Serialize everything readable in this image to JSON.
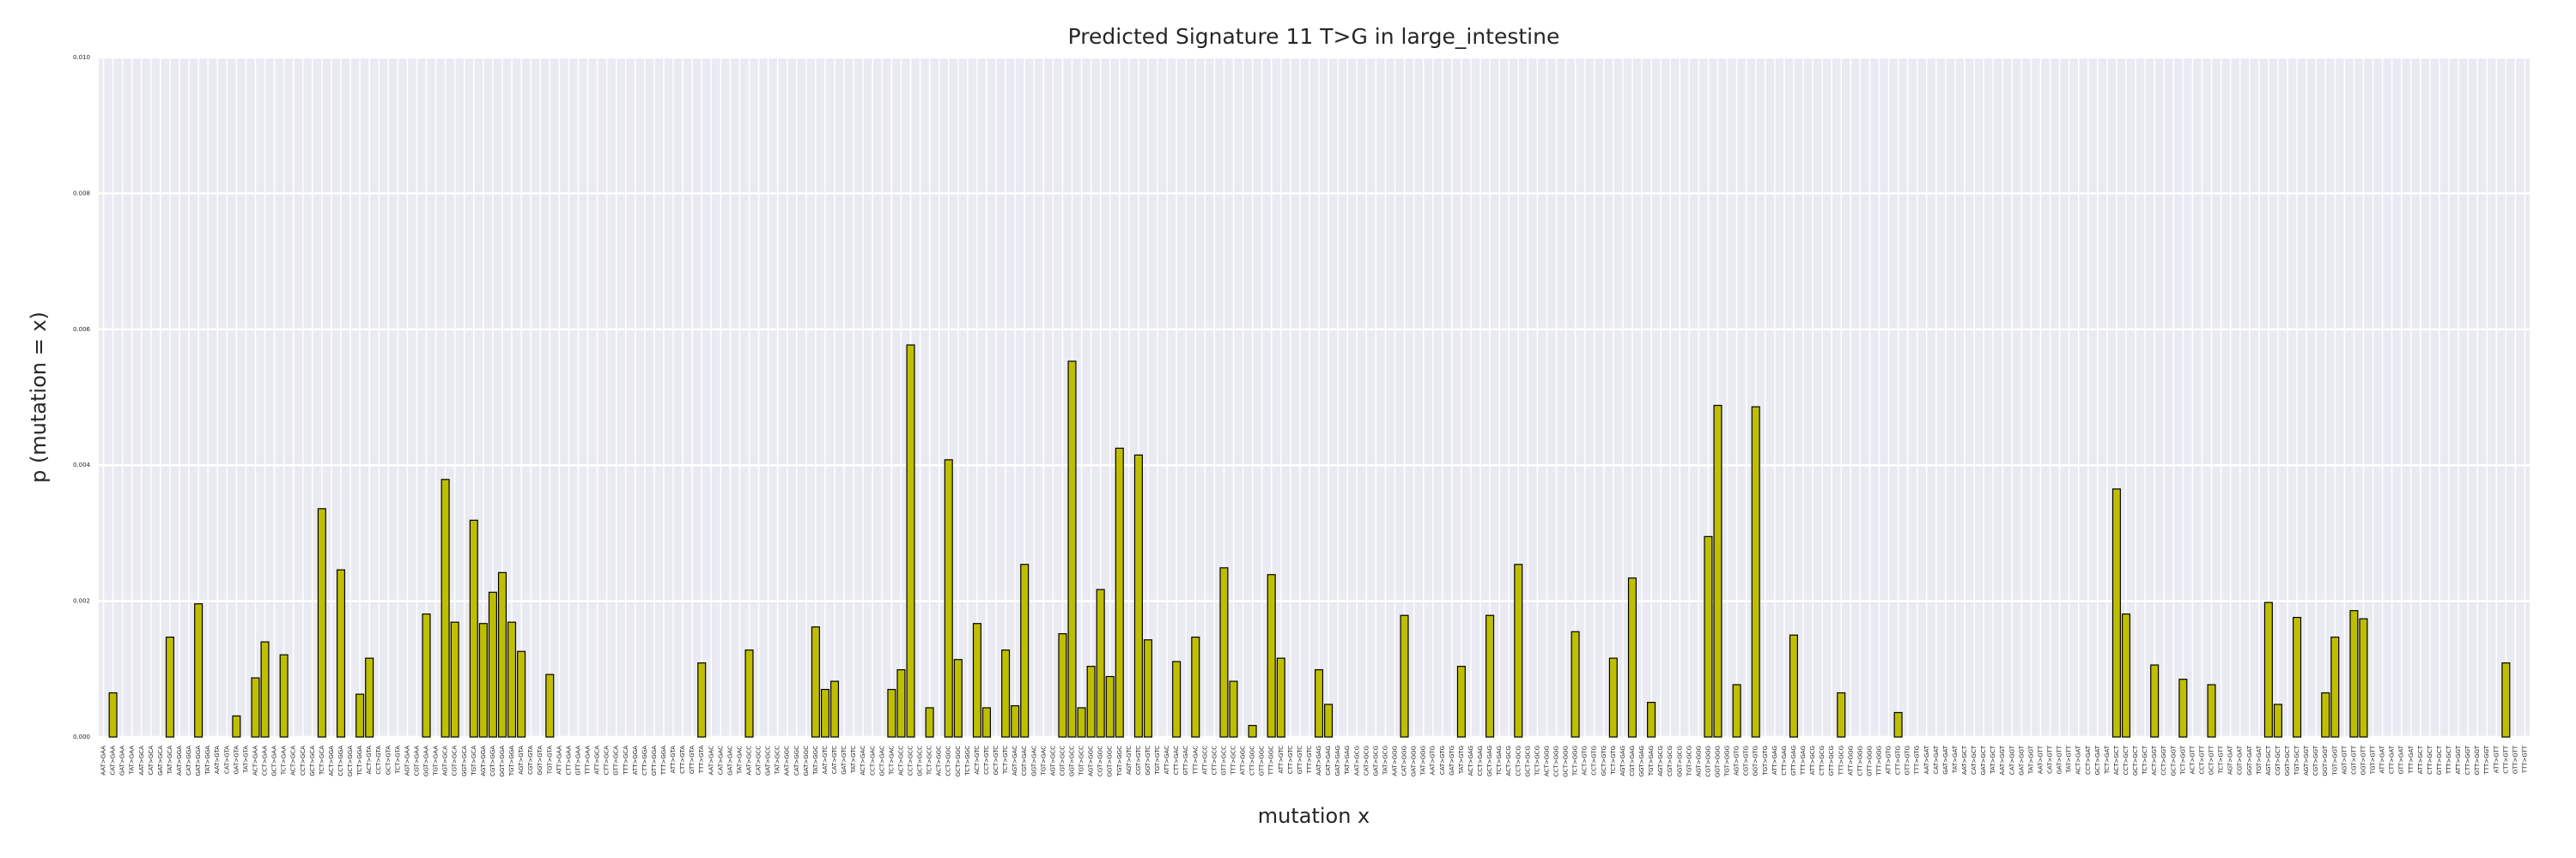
{
  "chart_data": {
    "type": "bar",
    "title": "Predicted Signature 11 T>G in large_intestine",
    "xlabel": "mutation x",
    "ylabel": "p (mutation = x)",
    "color": "#bfbf00",
    "edgecolor": "#000000",
    "grid": true,
    "ylim": [
      0,
      0.01
    ],
    "yticks": [
      {
        "value": 0,
        "label": "0.000"
      },
      {
        "value": 0.002,
        "label": "0.002"
      },
      {
        "value": 0.004,
        "label": "0.004"
      },
      {
        "value": 0.006,
        "label": "0.006"
      },
      {
        "value": 0.008,
        "label": "0.008"
      },
      {
        "value": 0.01,
        "label": "0.010"
      }
    ],
    "categories": [
      "AAT>GAA",
      "CAT>GAA",
      "GAT>GAA",
      "TAT>GAA",
      "AAT>GCA",
      "CAT>GCA",
      "GAT>GCA",
      "TAT>GCA",
      "AAT>GGA",
      "CAT>GGA",
      "GAT>GGA",
      "TAT>GGA",
      "AAT>GTA",
      "CAT>GTA",
      "GAT>GTA",
      "TAT>GTA",
      "ACT>GAA",
      "CCT>GAA",
      "GCT>GAA",
      "TCT>GAA",
      "ACT>GCA",
      "CCT>GCA",
      "GCT>GCA",
      "TCT>GCA",
      "ACT>GGA",
      "CCT>GGA",
      "GCT>GGA",
      "TCT>GGA",
      "ACT>GTA",
      "CCT>GTA",
      "GCT>GTA",
      "TCT>GTA",
      "AGT>GAA",
      "CGT>GAA",
      "GGT>GAA",
      "TGT>GAA",
      "AGT>GCA",
      "CGT>GCA",
      "GGT>GCA",
      "TGT>GCA",
      "AGT>GGA",
      "CGT>GGA",
      "GGT>GGA",
      "TGT>GGA",
      "AGT>GTA",
      "CGT>GTA",
      "GGT>GTA",
      "TGT>GTA",
      "ATT>GAA",
      "CTT>GAA",
      "GTT>GAA",
      "TTT>GAA",
      "ATT>GCA",
      "CTT>GCA",
      "GTT>GCA",
      "TTT>GCA",
      "ATT>GGA",
      "CTT>GGA",
      "GTT>GGA",
      "TTT>GGA",
      "ATT>GTA",
      "CTT>GTA",
      "GTT>GTA",
      "TTT>GTA",
      "AAT>GAC",
      "CAT>GAC",
      "GAT>GAC",
      "TAT>GAC",
      "AAT>GCC",
      "CAT>GCC",
      "GAT>GCC",
      "TAT>GCC",
      "AAT>GGC",
      "CAT>GGC",
      "GAT>GGC",
      "TAT>GGC",
      "AAT>GTC",
      "CAT>GTC",
      "GAT>GTC",
      "TAT>GTC",
      "ACT>GAC",
      "CCT>GAC",
      "GCT>GAC",
      "TCT>GAC",
      "ACT>GCC",
      "CCT>GCC",
      "GCT>GCC",
      "TCT>GCC",
      "ACT>GGC",
      "CCT>GGC",
      "GCT>GGC",
      "TCT>GGC",
      "ACT>GTC",
      "CCT>GTC",
      "GCT>GTC",
      "TCT>GTC",
      "AGT>GAC",
      "CGT>GAC",
      "GGT>GAC",
      "TGT>GAC",
      "AGT>GCC",
      "CGT>GCC",
      "GGT>GCC",
      "TGT>GCC",
      "AGT>GGC",
      "CGT>GGC",
      "GGT>GGC",
      "TGT>GGC",
      "AGT>GTC",
      "CGT>GTC",
      "GGT>GTC",
      "TGT>GTC",
      "ATT>GAC",
      "CTT>GAC",
      "GTT>GAC",
      "TTT>GAC",
      "ATT>GCC",
      "CTT>GCC",
      "GTT>GCC",
      "TTT>GCC",
      "ATT>GGC",
      "CTT>GGC",
      "GTT>GGC",
      "TTT>GGC",
      "ATT>GTC",
      "CTT>GTC",
      "GTT>GTC",
      "TTT>GTC",
      "AAT>GAG",
      "CAT>GAG",
      "GAT>GAG",
      "TAT>GAG",
      "AAT>GCG",
      "CAT>GCG",
      "GAT>GCG",
      "TAT>GCG",
      "AAT>GGG",
      "CAT>GGG",
      "GAT>GGG",
      "TAT>GGG",
      "AAT>GTG",
      "CAT>GTG",
      "GAT>GTG",
      "TAT>GTG",
      "ACT>GAG",
      "CCT>GAG",
      "GCT>GAG",
      "TCT>GAG",
      "ACT>GCG",
      "CCT>GCG",
      "GCT>GCG",
      "TCT>GCG",
      "ACT>GGG",
      "CCT>GGG",
      "GCT>GGG",
      "TCT>GGG",
      "ACT>GTG",
      "CCT>GTG",
      "GCT>GTG",
      "TCT>GTG",
      "AGT>GAG",
      "CGT>GAG",
      "GGT>GAG",
      "TGT>GAG",
      "AGT>GCG",
      "CGT>GCG",
      "GGT>GCG",
      "TGT>GCG",
      "AGT>GGG",
      "CGT>GGG",
      "GGT>GGG",
      "TGT>GGG",
      "AGT>GTG",
      "CGT>GTG",
      "GGT>GTG",
      "TGT>GTG",
      "ATT>GAG",
      "CTT>GAG",
      "GTT>GAG",
      "TTT>GAG",
      "ATT>GCG",
      "CTT>GCG",
      "GTT>GCG",
      "TTT>GCG",
      "ATT>GGG",
      "CTT>GGG",
      "GTT>GGG",
      "TTT>GGG",
      "ATT>GTG",
      "CTT>GTG",
      "GTT>GTG",
      "TTT>GTG",
      "AAT>GAT",
      "CAT>GAT",
      "GAT>GAT",
      "TAT>GAT",
      "AAT>GCT",
      "CAT>GCT",
      "GAT>GCT",
      "TAT>GCT",
      "AAT>GGT",
      "CAT>GGT",
      "GAT>GGT",
      "TAT>GGT",
      "AAT>GTT",
      "CAT>GTT",
      "GAT>GTT",
      "TAT>GTT",
      "ACT>GAT",
      "CCT>GAT",
      "GCT>GAT",
      "TCT>GAT",
      "ACT>GCT",
      "CCT>GCT",
      "GCT>GCT",
      "TCT>GCT",
      "ACT>GGT",
      "CCT>GGT",
      "GCT>GGT",
      "TCT>GGT",
      "ACT>GTT",
      "CCT>GTT",
      "GCT>GTT",
      "TCT>GTT",
      "AGT>GAT",
      "CGT>GAT",
      "GGT>GAT",
      "TGT>GAT",
      "AGT>GCT",
      "CGT>GCT",
      "GGT>GCT",
      "TGT>GCT",
      "AGT>GGT",
      "CGT>GGT",
      "GGT>GGT",
      "TGT>GGT",
      "AGT>GTT",
      "CGT>GTT",
      "GGT>GTT",
      "TGT>GTT",
      "ATT>GAT",
      "CTT>GAT",
      "GTT>GAT",
      "TTT>GAT",
      "ATT>GCT",
      "CTT>GCT",
      "GTT>GCT",
      "TTT>GCT",
      "ATT>GGT",
      "CTT>GGT",
      "GTT>GGT",
      "TTT>GGT",
      "ATT>GTT",
      "CTT>GTT",
      "GTT>GTT",
      "TTT>GTT"
    ],
    "values": [
      0,
      0.00065,
      0,
      0,
      0,
      0,
      0,
      0.00147,
      0,
      0,
      0.00196,
      0,
      0,
      0,
      0.00031,
      0,
      0.00087,
      0.0014,
      0,
      0.00121,
      0,
      0,
      0,
      0.00336,
      0,
      0.00246,
      0,
      0.00063,
      0.00116,
      0,
      0,
      0,
      0,
      0,
      0.00181,
      0,
      0.00379,
      0.00169,
      0,
      0.00319,
      0.00167,
      0.00213,
      0.00242,
      0.00169,
      0.00126,
      0,
      0,
      0.00092,
      0,
      0,
      0,
      0,
      0,
      0,
      0,
      0,
      0,
      0,
      0,
      0,
      0,
      0,
      0,
      0.00109,
      0,
      0,
      0,
      0,
      0.00128,
      0,
      0,
      0,
      0,
      0,
      0,
      0.00162,
      0.0007,
      0.00082,
      0,
      0,
      0,
      0,
      0,
      0.0007,
      0.00099,
      0.00577,
      0,
      0.00043,
      0,
      0.00408,
      0.00114,
      0,
      0.00167,
      0.00043,
      0,
      0.00128,
      0.00046,
      0.00254,
      0,
      0,
      0,
      0.00152,
      0.00553,
      0.00043,
      0.00104,
      0.00217,
      0.00089,
      0.00425,
      0,
      0.00415,
      0.00143,
      0,
      0,
      0.00111,
      0,
      0.00147,
      0,
      0,
      0.00249,
      0.00082,
      0,
      0.00017,
      0,
      0.00239,
      0.00116,
      0,
      0,
      0,
      0.00099,
      0.00048,
      0,
      0,
      0,
      0,
      0,
      0,
      0,
      0.00179,
      0,
      0,
      0,
      0,
      0,
      0.00104,
      0,
      0,
      0.00179,
      0,
      0,
      0.00254,
      0,
      0,
      0,
      0,
      0,
      0.00155,
      0,
      0,
      0,
      0.00116,
      0,
      0.00234,
      0,
      0.00051,
      0,
      0,
      0,
      0,
      0,
      0.00295,
      0.00488,
      0,
      0.00077,
      0,
      0.00486,
      0,
      0,
      0,
      0.0015,
      0,
      0,
      0,
      0,
      0.00065,
      0,
      0,
      0,
      0,
      0,
      0.00036,
      0,
      0,
      0,
      0,
      0,
      0,
      0,
      0,
      0,
      0,
      0,
      0,
      0,
      0,
      0,
      0,
      0,
      0,
      0,
      0,
      0,
      0,
      0.00365,
      0.00181,
      0,
      0,
      0.00106,
      0,
      0,
      0.00085,
      0,
      0,
      0.00077,
      0,
      0,
      0,
      0,
      0,
      0.00198,
      0.00048,
      0,
      0.00176,
      0,
      0,
      0.00065,
      0.00147,
      0,
      0.00186,
      0.00174,
      0,
      0,
      0,
      0,
      0,
      0,
      0,
      0,
      0,
      0,
      0,
      0,
      0,
      0,
      0.00109,
      0,
      0
    ]
  }
}
